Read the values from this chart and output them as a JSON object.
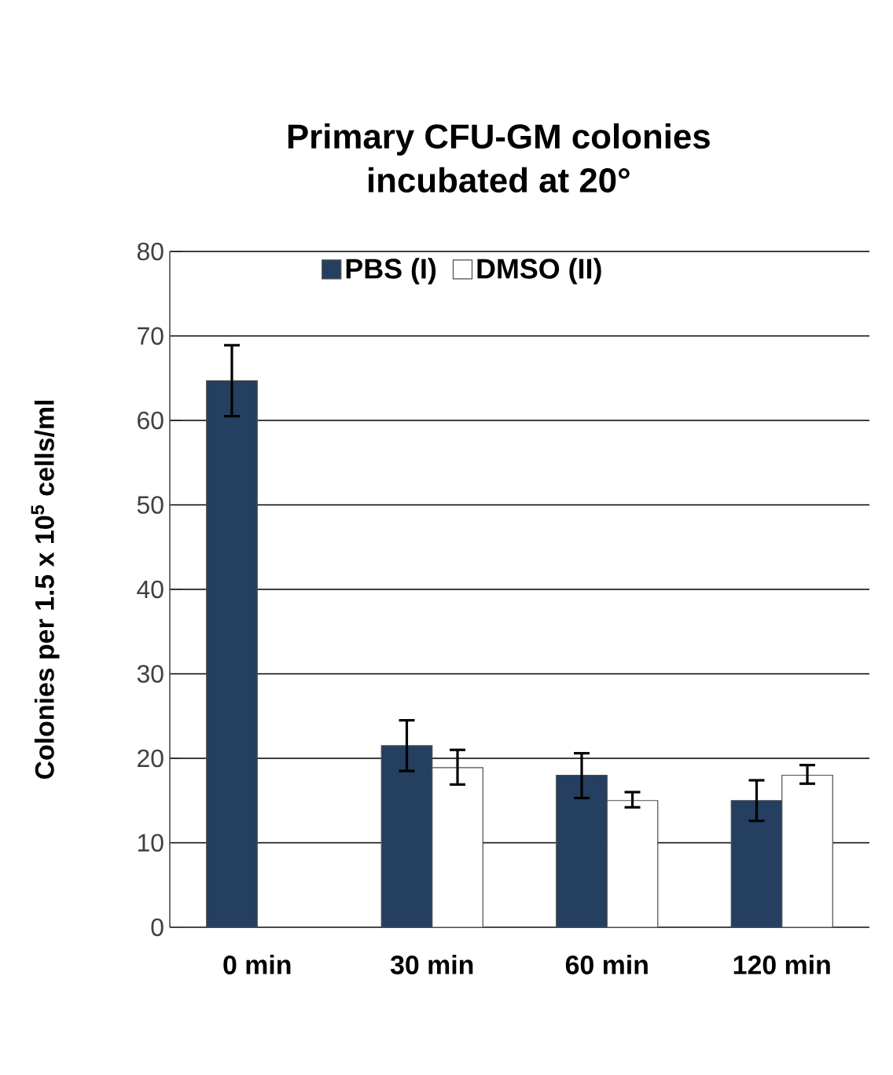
{
  "chart_data": {
    "type": "bar",
    "title": "Primary CFU-GM colonies\nincubated at 20°",
    "ylabel": "Colonies per 1.5 x 10$^{5}$ cells/ml",
    "categories": [
      "0 min",
      "30 min",
      "60 min",
      "120 min"
    ],
    "series": [
      {
        "name": "PBS (I)",
        "color": "#243f60",
        "values": [
          64.7,
          21.5,
          18,
          15
        ],
        "errors": [
          [
            60.5,
            68.9
          ],
          [
            18.5,
            24.5
          ],
          [
            15.3,
            20.6
          ],
          [
            12.6,
            17.4
          ]
        ]
      },
      {
        "name": "DMSO (II)",
        "color": "#ffffff",
        "values": [
          null,
          18.9,
          15,
          18
        ],
        "errors": [
          null,
          [
            16.9,
            21
          ],
          [
            14.2,
            16
          ],
          [
            17,
            19.2
          ]
        ]
      }
    ],
    "ylim": [
      0,
      80
    ],
    "yticks": [
      0,
      10,
      20,
      30,
      40,
      50,
      60,
      70,
      80
    ],
    "grid": "y",
    "legend": "top"
  }
}
